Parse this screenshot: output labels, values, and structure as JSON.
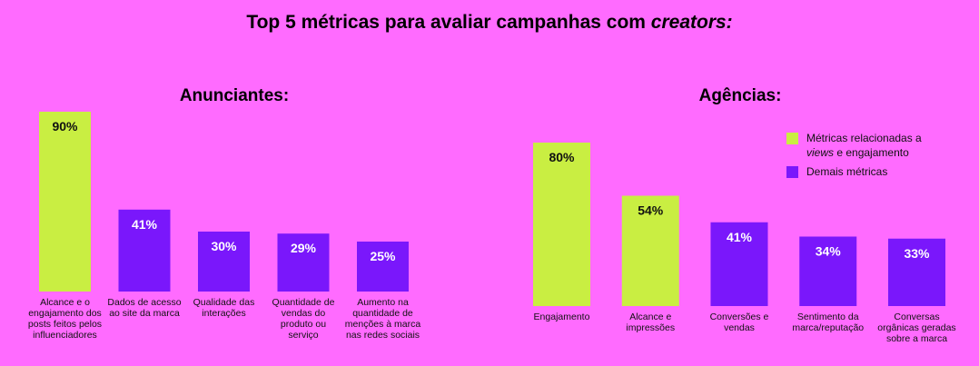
{
  "title": {
    "before": "Top 5 métricas para avaliar campanhas com ",
    "italic": "creators:"
  },
  "legend": {
    "views_line1": "Métricas relacionadas a",
    "views_italic": "views",
    "views_line2_rest": " e engajamento",
    "other": "Demais métricas"
  },
  "colors": {
    "background": "#ff6bff",
    "views_engagement": "#c9ee42",
    "other": "#7a17fb"
  },
  "chart_data": [
    {
      "type": "bar",
      "title": "Anunciantes:",
      "categories": [
        "Alcance e o engajamento dos posts feitos pelos influenciadores",
        "Dados de acesso ao site da marca",
        "Qualidade das interações",
        "Quantidade de vendas do produto ou serviço",
        "Aumento na quantidade de menções à marca nas redes sociais"
      ],
      "values": [
        90,
        41,
        30,
        29,
        25
      ],
      "value_labels": [
        "90%",
        "41%",
        "30%",
        "29%",
        "25%"
      ],
      "groups": [
        "views_engagement",
        "other",
        "other",
        "other",
        "other"
      ],
      "ylim": [
        0,
        100
      ],
      "grid": false
    },
    {
      "type": "bar",
      "title": "Agências:",
      "categories": [
        "Engajamento",
        "Alcance e impressões",
        "Conversões e vendas",
        "Sentimento da marca/reputação",
        "Conversas orgânicas geradas sobre a marca"
      ],
      "values": [
        80,
        54,
        41,
        34,
        33
      ],
      "value_labels": [
        "80%",
        "54%",
        "41%",
        "34%",
        "33%"
      ],
      "groups": [
        "views_engagement",
        "views_engagement",
        "other",
        "other",
        "other"
      ],
      "ylim": [
        0,
        100
      ],
      "grid": false,
      "legend_position": "top-right"
    }
  ]
}
